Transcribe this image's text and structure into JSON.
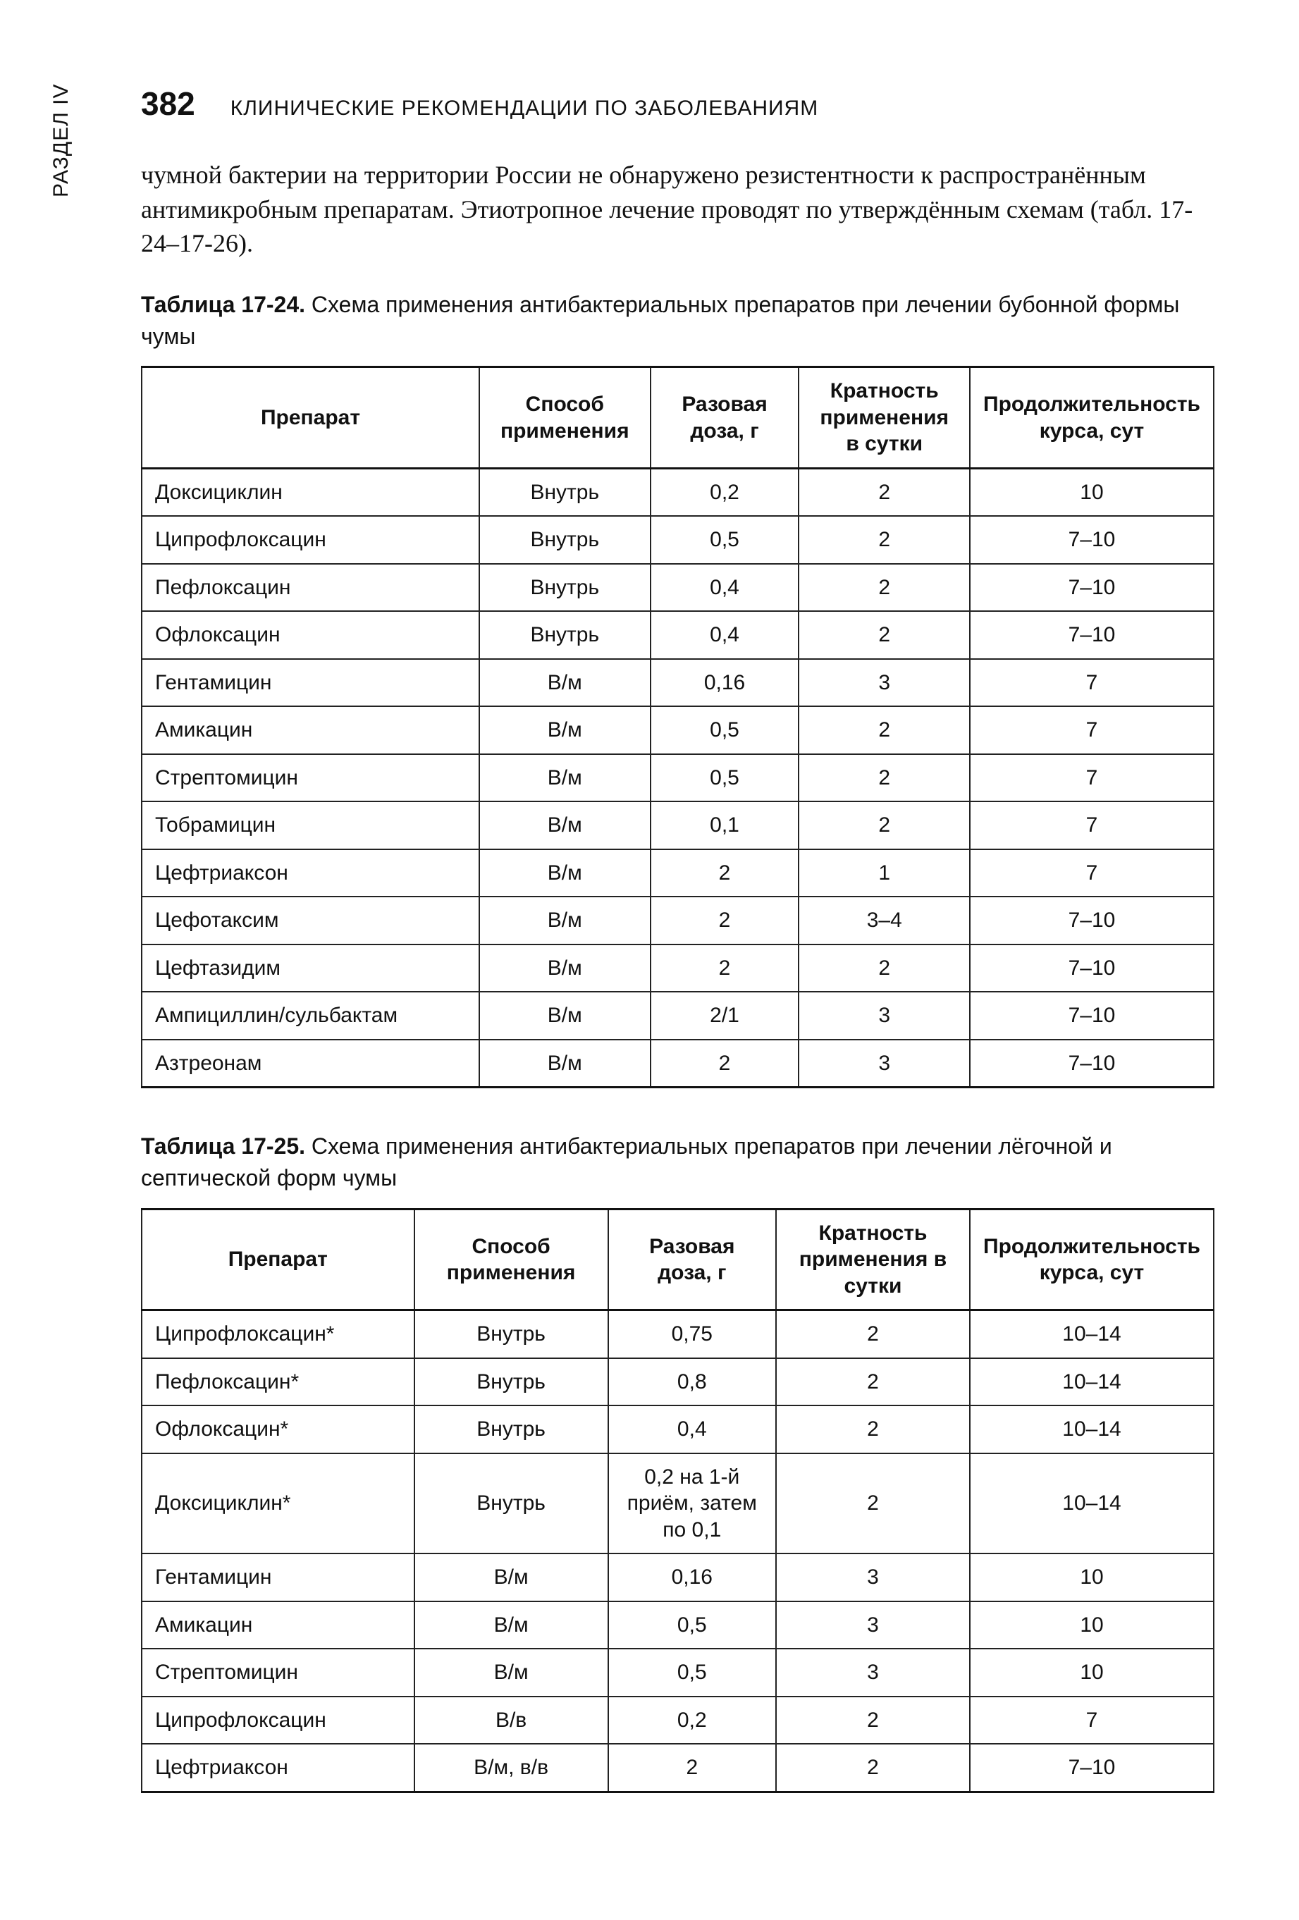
{
  "page": {
    "side_label": "РАЗДЕЛ IV",
    "number": "382",
    "running_head": "КЛИНИЧЕСКИЕ РЕКОМЕНДАЦИИ ПО ЗАБОЛЕВАНИЯМ",
    "body_text": "чумной бактерии на территории России не обнаружено резистентности к распространённым антимикробным препаратам. Этиотропное лечение проводят по утверждённым схемам (табл. 17-24–17-26)."
  },
  "table1": {
    "caption_bold": "Таблица 17-24.",
    "caption_rest": " Схема применения антибактериальных препаратов при лечении бубонной формы чумы",
    "headers": {
      "c1": "Препарат",
      "c2": "Способ применения",
      "c3": "Разовая доза, г",
      "c4": "Кратность применения в сутки",
      "c5": "Продолжительность курса, сут"
    },
    "rows": [
      {
        "c1": "Доксициклин",
        "c2": "Внутрь",
        "c3": "0,2",
        "c4": "2",
        "c5": "10"
      },
      {
        "c1": "Ципрофлоксацин",
        "c2": "Внутрь",
        "c3": "0,5",
        "c4": "2",
        "c5": "7–10"
      },
      {
        "c1": "Пефлоксацин",
        "c2": "Внутрь",
        "c3": "0,4",
        "c4": "2",
        "c5": "7–10"
      },
      {
        "c1": "Офлоксацин",
        "c2": "Внутрь",
        "c3": "0,4",
        "c4": "2",
        "c5": "7–10"
      },
      {
        "c1": "Гентамицин",
        "c2": "В/м",
        "c3": "0,16",
        "c4": "3",
        "c5": "7"
      },
      {
        "c1": "Амикацин",
        "c2": "В/м",
        "c3": "0,5",
        "c4": "2",
        "c5": "7"
      },
      {
        "c1": "Стрептомицин",
        "c2": "В/м",
        "c3": "0,5",
        "c4": "2",
        "c5": "7"
      },
      {
        "c1": "Тобрамицин",
        "c2": "В/м",
        "c3": "0,1",
        "c4": "2",
        "c5": "7"
      },
      {
        "c1": "Цефтриаксон",
        "c2": "В/м",
        "c3": "2",
        "c4": "1",
        "c5": "7"
      },
      {
        "c1": "Цефотаксим",
        "c2": "В/м",
        "c3": "2",
        "c4": "3–4",
        "c5": "7–10"
      },
      {
        "c1": "Цефтазидим",
        "c2": "В/м",
        "c3": "2",
        "c4": "2",
        "c5": "7–10"
      },
      {
        "c1": "Ампициллин/сульбактам",
        "c2": "В/м",
        "c3": "2/1",
        "c4": "3",
        "c5": "7–10"
      },
      {
        "c1": "Азтреонам",
        "c2": "В/м",
        "c3": "2",
        "c4": "3",
        "c5": "7–10"
      }
    ]
  },
  "table2": {
    "caption_bold": "Таблица 17-25.",
    "caption_rest": " Схема применения антибактериальных препаратов при лечении лёгочной и септической форм чумы",
    "headers": {
      "c1": "Препарат",
      "c2": "Способ применения",
      "c3": "Разовая доза, г",
      "c4": "Кратность применения в сутки",
      "c5": "Продолжительность курса, сут"
    },
    "rows": [
      {
        "c1": "Ципрофлоксацин*",
        "c2": "Внутрь",
        "c3": "0,75",
        "c4": "2",
        "c5": "10–14"
      },
      {
        "c1": "Пефлоксацин*",
        "c2": "Внутрь",
        "c3": "0,8",
        "c4": "2",
        "c5": "10–14"
      },
      {
        "c1": "Офлоксацин*",
        "c2": "Внутрь",
        "c3": "0,4",
        "c4": "2",
        "c5": "10–14"
      },
      {
        "c1": "Доксициклин*",
        "c2": "Внутрь",
        "c3": "0,2 на 1-й приём, затем по 0,1",
        "c4": "2",
        "c5": "10–14"
      },
      {
        "c1": "Гентамицин",
        "c2": "В/м",
        "c3": "0,16",
        "c4": "3",
        "c5": "10"
      },
      {
        "c1": "Амикацин",
        "c2": "В/м",
        "c3": "0,5",
        "c4": "3",
        "c5": "10"
      },
      {
        "c1": "Стрептомицин",
        "c2": "В/м",
        "c3": "0,5",
        "c4": "3",
        "c5": "10"
      },
      {
        "c1": "Ципрофлоксацин",
        "c2": "В/в",
        "c3": "0,2",
        "c4": "2",
        "c5": "7"
      },
      {
        "c1": "Цефтриаксон",
        "c2": "В/м, в/в",
        "c3": "2",
        "c4": "2",
        "c5": "7–10"
      }
    ]
  }
}
